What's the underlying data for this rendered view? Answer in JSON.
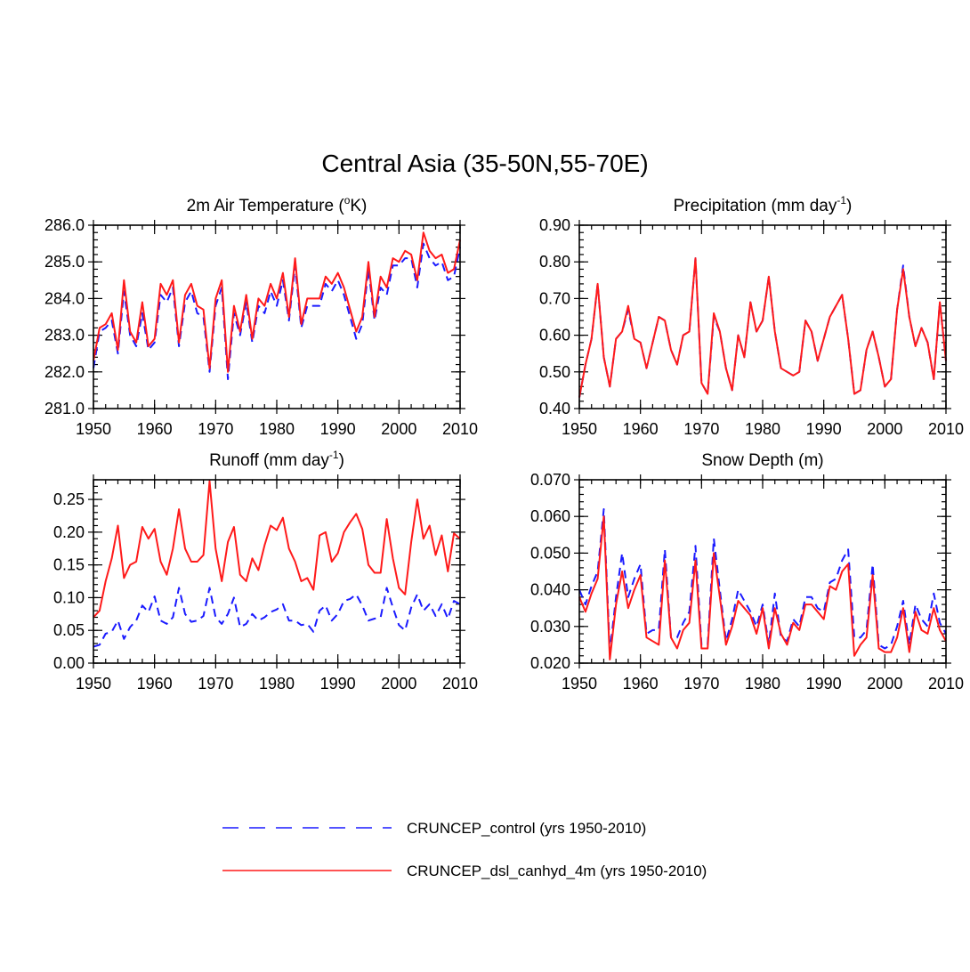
{
  "title": "Central Asia (35-50N,55-70E)",
  "colors": {
    "control": "#1a1aff",
    "dsl": "#ff1a1a"
  },
  "legend": [
    {
      "key": "control",
      "label": "CRUNCEP_control (yrs 1950-2010)",
      "style": "dashed"
    },
    {
      "key": "dsl",
      "label": "CRUNCEP_dsl_canhyd_4m (yrs 1950-2010)",
      "style": "solid"
    }
  ],
  "chart_data": [
    {
      "type": "line",
      "title": "2m Air Temperature (",
      "title_sup": "o",
      "title_post": "K)",
      "title_sup2": "",
      "title_post2": "",
      "xlim": [
        1950,
        2010
      ],
      "ylim": [
        281.0,
        286.0
      ],
      "xticks": [
        1950,
        1960,
        1970,
        1980,
        1990,
        2000,
        2010
      ],
      "yticks": [
        281.0,
        282.0,
        283.0,
        284.0,
        285.0,
        286.0
      ],
      "ydecimals": 1,
      "series": [
        {
          "name": "CRUNCEP_control",
          "key": "control",
          "values": [
            282.1,
            283.1,
            283.2,
            283.4,
            282.5,
            284.2,
            283.0,
            282.7,
            283.6,
            282.6,
            282.8,
            284.1,
            283.9,
            284.3,
            282.7,
            283.9,
            284.2,
            283.6,
            283.5,
            282.0,
            283.8,
            284.3,
            281.8,
            283.6,
            283.0,
            283.9,
            282.8,
            283.8,
            283.6,
            284.2,
            283.8,
            284.5,
            283.4,
            284.9,
            283.2,
            283.8,
            283.8,
            283.8,
            284.4,
            284.2,
            284.5,
            284.1,
            283.5,
            282.9,
            283.3,
            284.8,
            283.4,
            284.3,
            284.1,
            284.9,
            284.9,
            285.1,
            285.1,
            284.3,
            285.5,
            285.1,
            284.9,
            285.0,
            284.5,
            284.6,
            285.4
          ]
        },
        {
          "name": "CRUNCEP_dsl_canhyd_4m",
          "key": "dsl",
          "values": [
            282.3,
            283.2,
            283.3,
            283.6,
            282.6,
            284.5,
            283.1,
            282.8,
            283.9,
            282.7,
            282.9,
            284.4,
            284.1,
            284.5,
            282.8,
            284.1,
            284.4,
            283.8,
            283.7,
            282.1,
            284.0,
            284.5,
            282.0,
            283.8,
            283.1,
            284.1,
            282.9,
            284.0,
            283.8,
            284.4,
            284.0,
            284.7,
            283.5,
            285.1,
            283.3,
            284.0,
            284.0,
            284.0,
            284.6,
            284.4,
            284.7,
            284.3,
            283.7,
            283.1,
            283.5,
            285.0,
            283.5,
            284.6,
            284.3,
            285.1,
            285.0,
            285.3,
            285.2,
            284.5,
            285.8,
            285.3,
            285.1,
            285.2,
            284.7,
            284.8,
            285.6
          ]
        }
      ]
    },
    {
      "type": "line",
      "title": "Precipitation (mm day",
      "title_sup": "-1",
      "title_post": ")",
      "title_sup2": "",
      "title_post2": "",
      "xlim": [
        1950,
        2010
      ],
      "ylim": [
        0.4,
        0.9
      ],
      "xticks": [
        1950,
        1960,
        1970,
        1980,
        1990,
        2000,
        2010
      ],
      "yticks": [
        0.4,
        0.5,
        0.6,
        0.7,
        0.8,
        0.9
      ],
      "ydecimals": 2,
      "series": [
        {
          "name": "CRUNCEP_control",
          "key": "control",
          "values": [
            0.43,
            0.52,
            0.59,
            0.74,
            0.54,
            0.46,
            0.59,
            0.61,
            0.67,
            0.59,
            0.58,
            0.51,
            0.58,
            0.65,
            0.64,
            0.56,
            0.52,
            0.6,
            0.61,
            0.81,
            0.47,
            0.44,
            0.65,
            0.61,
            0.51,
            0.45,
            0.6,
            0.54,
            0.69,
            0.61,
            0.64,
            0.76,
            0.61,
            0.51,
            0.5,
            0.49,
            0.5,
            0.64,
            0.61,
            0.53,
            0.59,
            0.65,
            0.68,
            0.71,
            0.59,
            0.44,
            0.45,
            0.56,
            0.61,
            0.54,
            0.46,
            0.48,
            0.67,
            0.79,
            0.65,
            0.57,
            0.62,
            0.58,
            0.48,
            0.69,
            0.53
          ]
        },
        {
          "name": "CRUNCEP_dsl_canhyd_4m",
          "key": "dsl",
          "values": [
            0.43,
            0.52,
            0.59,
            0.74,
            0.54,
            0.46,
            0.59,
            0.61,
            0.68,
            0.59,
            0.58,
            0.51,
            0.58,
            0.65,
            0.64,
            0.56,
            0.52,
            0.6,
            0.61,
            0.81,
            0.47,
            0.44,
            0.66,
            0.61,
            0.51,
            0.45,
            0.6,
            0.54,
            0.69,
            0.61,
            0.64,
            0.76,
            0.61,
            0.51,
            0.5,
            0.49,
            0.5,
            0.64,
            0.61,
            0.53,
            0.59,
            0.65,
            0.68,
            0.71,
            0.59,
            0.44,
            0.45,
            0.56,
            0.61,
            0.54,
            0.46,
            0.48,
            0.67,
            0.78,
            0.65,
            0.57,
            0.62,
            0.58,
            0.48,
            0.69,
            0.53
          ]
        }
      ]
    },
    {
      "type": "line",
      "title": "Runoff (mm day",
      "title_sup": "-1",
      "title_post": ")",
      "title_sup2": "",
      "title_post2": "",
      "xlim": [
        1950,
        2010
      ],
      "ylim": [
        0.0,
        0.28
      ],
      "xticks": [
        1950,
        1960,
        1970,
        1980,
        1990,
        2000,
        2010
      ],
      "yticks": [
        0.0,
        0.05,
        0.1,
        0.15,
        0.2,
        0.25
      ],
      "ydecimals": 2,
      "series": [
        {
          "name": "CRUNCEP_control",
          "key": "control",
          "values": [
            0.025,
            0.028,
            0.045,
            0.048,
            0.065,
            0.037,
            0.055,
            0.065,
            0.088,
            0.078,
            0.102,
            0.065,
            0.06,
            0.07,
            0.115,
            0.075,
            0.063,
            0.065,
            0.072,
            0.115,
            0.07,
            0.06,
            0.075,
            0.1,
            0.055,
            0.06,
            0.075,
            0.065,
            0.07,
            0.078,
            0.082,
            0.09,
            0.065,
            0.065,
            0.058,
            0.06,
            0.048,
            0.08,
            0.088,
            0.065,
            0.075,
            0.095,
            0.098,
            0.105,
            0.088,
            0.065,
            0.068,
            0.07,
            0.115,
            0.085,
            0.058,
            0.05,
            0.085,
            0.105,
            0.08,
            0.09,
            0.072,
            0.09,
            0.068,
            0.095,
            0.09
          ]
        },
        {
          "name": "CRUNCEP_dsl_canhyd_4m",
          "key": "dsl",
          "values": [
            0.07,
            0.08,
            0.125,
            0.16,
            0.21,
            0.13,
            0.15,
            0.155,
            0.208,
            0.19,
            0.205,
            0.155,
            0.135,
            0.175,
            0.235,
            0.175,
            0.155,
            0.155,
            0.165,
            0.278,
            0.175,
            0.125,
            0.185,
            0.208,
            0.135,
            0.125,
            0.16,
            0.142,
            0.18,
            0.21,
            0.203,
            0.222,
            0.175,
            0.155,
            0.125,
            0.13,
            0.112,
            0.195,
            0.2,
            0.155,
            0.168,
            0.2,
            0.215,
            0.228,
            0.205,
            0.15,
            0.138,
            0.138,
            0.22,
            0.16,
            0.115,
            0.105,
            0.185,
            0.25,
            0.19,
            0.21,
            0.165,
            0.195,
            0.14,
            0.198,
            0.19
          ]
        }
      ]
    },
    {
      "type": "line",
      "title": "Snow Depth (m)",
      "title_sup": "",
      "title_post": "",
      "title_sup2": "",
      "title_post2": "",
      "xlim": [
        1950,
        2010
      ],
      "ylim": [
        0.02,
        0.07
      ],
      "xticks": [
        1950,
        1960,
        1970,
        1980,
        1990,
        2000,
        2010
      ],
      "yticks": [
        0.02,
        0.03,
        0.04,
        0.05,
        0.06,
        0.07
      ],
      "ydecimals": 3,
      "series": [
        {
          "name": "CRUNCEP_control",
          "key": "control",
          "values": [
            0.04,
            0.036,
            0.041,
            0.045,
            0.062,
            0.023,
            0.038,
            0.05,
            0.038,
            0.043,
            0.047,
            0.028,
            0.029,
            0.029,
            0.051,
            0.027,
            0.027,
            0.031,
            0.034,
            0.052,
            0.025,
            0.025,
            0.054,
            0.04,
            0.026,
            0.032,
            0.04,
            0.037,
            0.034,
            0.03,
            0.036,
            0.025,
            0.039,
            0.027,
            0.026,
            0.032,
            0.03,
            0.038,
            0.038,
            0.035,
            0.034,
            0.042,
            0.043,
            0.048,
            0.051,
            0.027,
            0.027,
            0.029,
            0.047,
            0.025,
            0.024,
            0.025,
            0.03,
            0.037,
            0.025,
            0.036,
            0.032,
            0.03,
            0.039,
            0.031,
            0.028
          ]
        },
        {
          "name": "CRUNCEP_dsl_canhyd_4m",
          "key": "dsl",
          "values": [
            0.038,
            0.034,
            0.039,
            0.043,
            0.06,
            0.021,
            0.036,
            0.045,
            0.035,
            0.04,
            0.044,
            0.027,
            0.026,
            0.025,
            0.048,
            0.027,
            0.024,
            0.029,
            0.031,
            0.048,
            0.024,
            0.024,
            0.05,
            0.038,
            0.025,
            0.03,
            0.037,
            0.035,
            0.033,
            0.028,
            0.035,
            0.024,
            0.035,
            0.028,
            0.025,
            0.031,
            0.029,
            0.036,
            0.036,
            0.034,
            0.032,
            0.041,
            0.04,
            0.045,
            0.047,
            0.022,
            0.025,
            0.027,
            0.044,
            0.024,
            0.023,
            0.023,
            0.027,
            0.035,
            0.023,
            0.034,
            0.029,
            0.028,
            0.035,
            0.029,
            0.026
          ]
        }
      ]
    }
  ]
}
